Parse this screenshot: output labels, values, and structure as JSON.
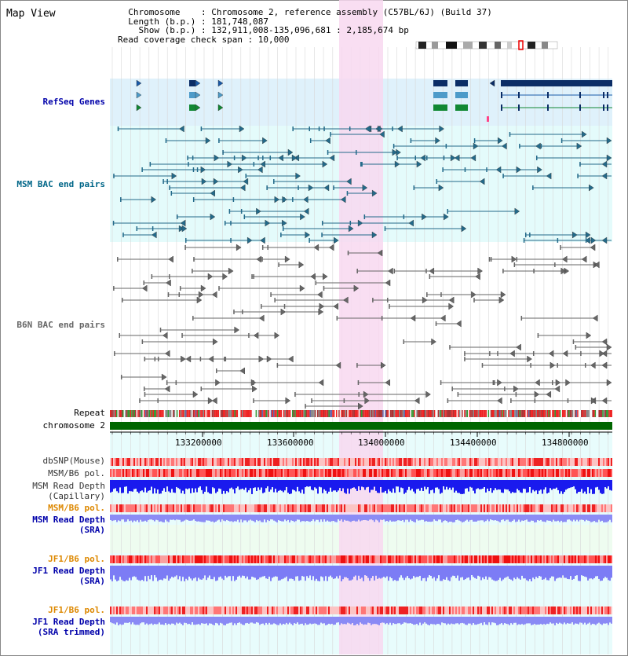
{
  "header": {
    "title": "Map View",
    "info_lines": [
      "  Chromosome    : Chromosome 2, reference assembly (C57BL/6J) (Build 37)",
      "  Length (b.p.) : 181,748,087",
      "    Show (b.p.) : 132,911,008-135,096,681 : 2,185,674 bp",
      "Read coverage check span : 10,000"
    ]
  },
  "tracks": {
    "refseq": "RefSeq Genes",
    "msm_bac": "MSM BAC end pairs",
    "b6n_bac": "B6N BAC end pairs",
    "repeat": "Repeat",
    "chromosome": "chromosome 2",
    "dbsnp": "dbSNP(Mouse)",
    "msm_b6_pol_1": "MSM/B6 pol.",
    "msm_depth_cap_1": "MSM Read Depth",
    "msm_depth_cap_2": "(Capillary)",
    "msm_b6_pol_2": "MSM/B6 pol.",
    "msm_depth_sra_1": "MSM Read Depth",
    "msm_depth_sra_2": "(SRA)",
    "jf1_b6_pol_1": "JF1/B6 pol.",
    "jf1_depth_sra_1": "JF1 Read Depth",
    "jf1_depth_sra_2": "(SRA)",
    "jf1_b6_pol_2": "JF1/B6 pol.",
    "jf1_depth_trim_1": "JF1 Read Depth",
    "jf1_depth_trim_2": "(SRA trimmed)"
  },
  "axis": {
    "ticks": [
      "133200000",
      "133600000",
      "134000000",
      "134400000",
      "134800000"
    ]
  },
  "colors": {
    "refseq_bg": "#dff1fb",
    "msm_bg": "#e4fbfb",
    "lower_bg": "#e8fcfc",
    "sra_bg": "#eefcf0",
    "highlight": "#f8d8f0",
    "chromosome": "#006600",
    "navy_label": "#0000aa",
    "teal_label": "#006688",
    "orange_label": "#dd8800"
  }
}
